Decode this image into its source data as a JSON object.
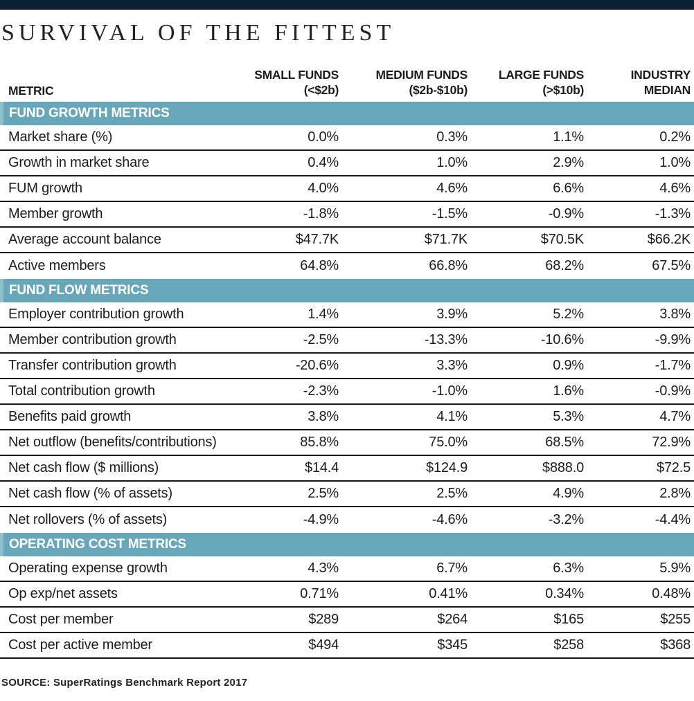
{
  "page": {
    "title": "SURVIVAL OF THE FITTEST",
    "source_line": "SOURCE: SuperRatings Benchmark Report 2017"
  },
  "colors": {
    "top_bar_navy": "#0d2033",
    "section_teal": "#68a6ba",
    "section_teal_edge": "#8fbfcc",
    "text_dark": "#1c1c1c",
    "section_text": "#ffffff",
    "row_divider": "#151515"
  },
  "chart_data": {
    "type": "table",
    "title": "SURVIVAL OF THE FITTEST",
    "metric_header": "METRIC",
    "column_headers": [
      {
        "line1": "SMALL FUNDS",
        "line2": "(<$2b)"
      },
      {
        "line1": "MEDIUM FUNDS",
        "line2": "($2b-$10b)"
      },
      {
        "line1": "LARGE FUNDS",
        "line2": "(>$10b)"
      },
      {
        "line1": "INDUSTRY",
        "line2": "MEDIAN"
      }
    ],
    "sections": [
      {
        "title": "FUND GROWTH METRICS",
        "rows": [
          {
            "label": "Market share (%)",
            "values": [
              "0.0%",
              "0.3%",
              "1.1%",
              "0.2%"
            ]
          },
          {
            "label": "Growth in market share",
            "values": [
              "0.4%",
              "1.0%",
              "2.9%",
              "1.0%"
            ]
          },
          {
            "label": "FUM growth",
            "values": [
              "4.0%",
              "4.6%",
              "6.6%",
              "4.6%"
            ]
          },
          {
            "label": "Member growth",
            "values": [
              "-1.8%",
              "-1.5%",
              "-0.9%",
              "-1.3%"
            ]
          },
          {
            "label": "Average account balance",
            "values": [
              "$47.7K",
              "$71.7K",
              "$70.5K",
              "$66.2K"
            ]
          },
          {
            "label": "Active members",
            "values": [
              "64.8%",
              "66.8%",
              "68.2%",
              "67.5%"
            ]
          }
        ]
      },
      {
        "title": "FUND FLOW METRICS",
        "rows": [
          {
            "label": "Employer contribution growth",
            "values": [
              "1.4%",
              "3.9%",
              "5.2%",
              "3.8%"
            ]
          },
          {
            "label": "Member contribution growth",
            "values": [
              "-2.5%",
              "-13.3%",
              "-10.6%",
              "-9.9%"
            ]
          },
          {
            "label": "Transfer contribution growth",
            "values": [
              "-20.6%",
              "3.3%",
              "0.9%",
              "-1.7%"
            ]
          },
          {
            "label": "Total contribution growth",
            "values": [
              "-2.3%",
              "-1.0%",
              "1.6%",
              "-0.9%"
            ]
          },
          {
            "label": "Benefits paid growth",
            "values": [
              "3.8%",
              "4.1%",
              "5.3%",
              "4.7%"
            ]
          },
          {
            "label": "Net outflow (benefits/contributions)",
            "values": [
              "85.8%",
              "75.0%",
              "68.5%",
              "72.9%"
            ]
          },
          {
            "label": "Net cash flow ($ millions)",
            "values": [
              "$14.4",
              "$124.9",
              "$888.0",
              "$72.5"
            ]
          },
          {
            "label": "Net cash flow (% of assets)",
            "values": [
              "2.5%",
              "2.5%",
              "4.9%",
              "2.8%"
            ]
          },
          {
            "label": "Net rollovers (% of assets)",
            "values": [
              "-4.9%",
              "-4.6%",
              "-3.2%",
              "-4.4%"
            ]
          }
        ]
      },
      {
        "title": "OPERATING COST METRICS",
        "rows": [
          {
            "label": "Operating expense growth",
            "values": [
              "4.3%",
              "6.7%",
              "6.3%",
              "5.9%"
            ]
          },
          {
            "label": "Op exp/net assets",
            "values": [
              "0.71%",
              "0.41%",
              "0.34%",
              "0.48%"
            ]
          },
          {
            "label": "Cost per member",
            "values": [
              "$289",
              "$264",
              "$165",
              "$255"
            ]
          },
          {
            "label": "Cost per active member",
            "values": [
              "$494",
              "$345",
              "$258",
              "$368"
            ]
          }
        ]
      }
    ],
    "source": "SOURCE: SuperRatings Benchmark Report 2017"
  }
}
